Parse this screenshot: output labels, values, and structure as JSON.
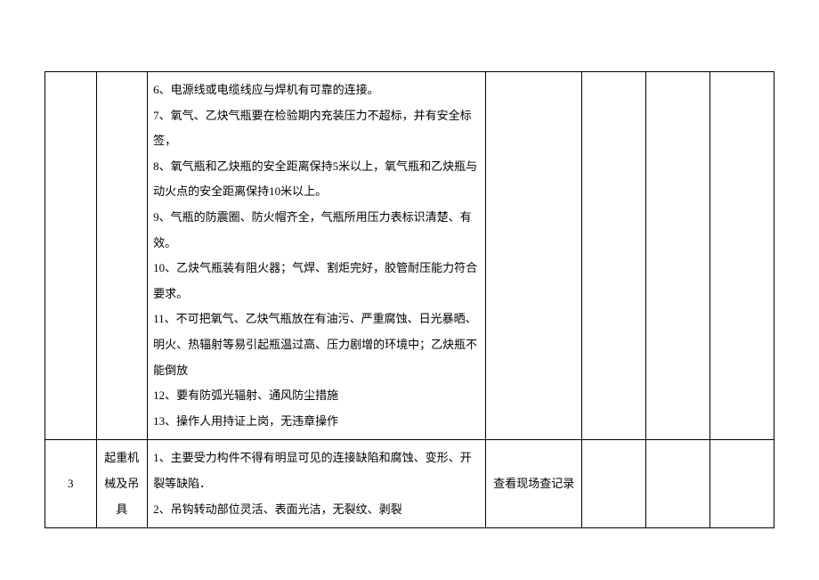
{
  "table": {
    "rows": [
      {
        "num": "",
        "category": "",
        "content_lines": [
          "6、电源线或电缆线应与焊机有可靠的连接。",
          "7、氧气、乙炔气瓶要在检验期内充装压力不超标，并有安全标签，",
          "8、氧气瓶和乙炔瓶的安全距离保持5米以上，氧气瓶和乙炔瓶与动火点的安全距离保持10米以上。",
          "9、气瓶的防震圈、防火帽齐全，气瓶所用压力表标识清楚、有效。",
          "10、乙炔气瓶装有阻火器；气焊、割炬完好，胶管耐压能力符合要求。",
          "11、不可把氧气、乙炔气瓶放在有油污、严重腐蚀、日光暴晒、明火、热辐射等易引起瓶温过高、压力剧增的环境中；乙炔瓶不能倒放",
          "12、要有防弧光辐射、通风防尘措施",
          "13、操作人用持证上岗，无违章操作"
        ],
        "method": "",
        "e1": "",
        "e2": "",
        "e3": ""
      },
      {
        "num": "3",
        "category": "起重机械及吊具",
        "content_lines": [
          "1、主要受力构件不得有明显可见的连接缺陷和腐蚀、变形、开裂等缺陷．",
          "2、吊钩转动部位灵活、表面光洁，无裂纹、剥裂"
        ],
        "method": "查看现场查记录",
        "e1": "",
        "e2": "",
        "e3": ""
      }
    ]
  }
}
